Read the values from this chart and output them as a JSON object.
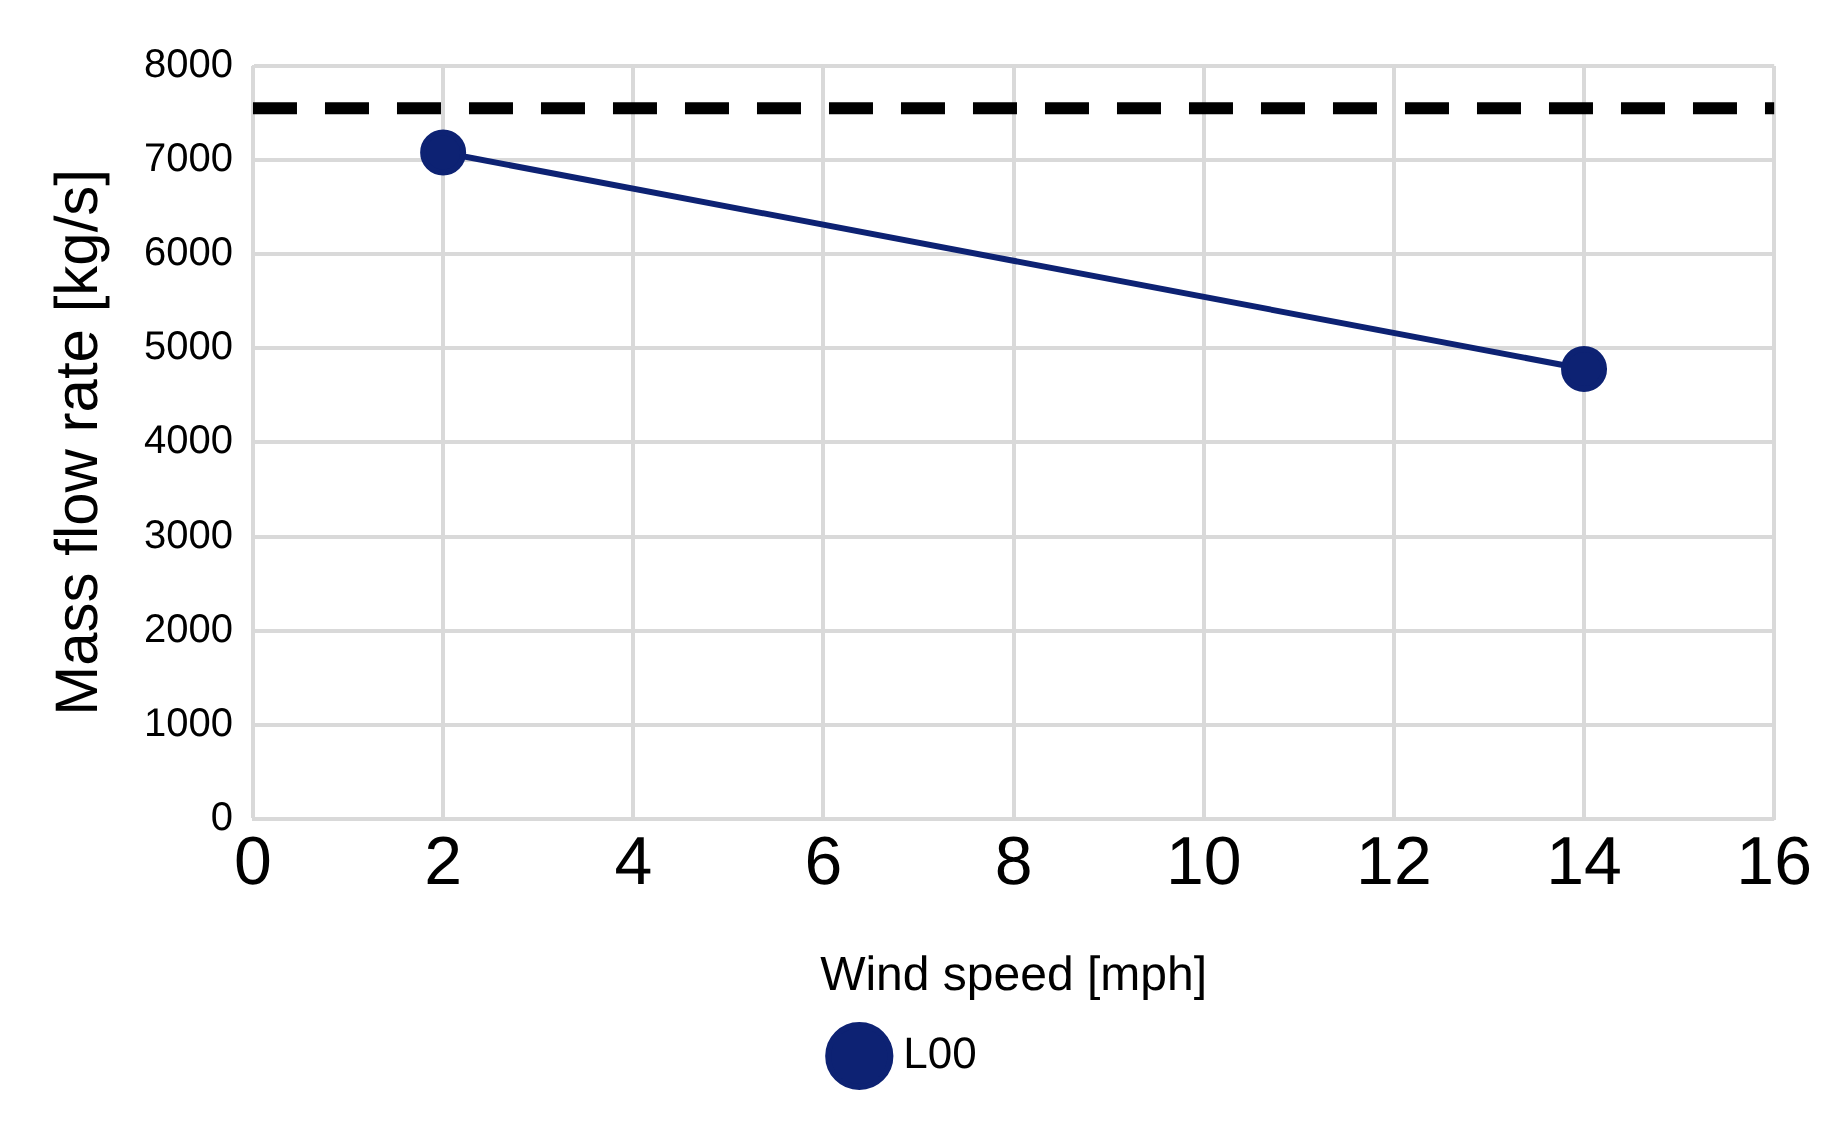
{
  "chart_data": {
    "type": "line",
    "xlabel": "Wind speed [mph]",
    "ylabel": "Mass flow rate [kg/s]",
    "x": [
      2,
      14
    ],
    "series": [
      {
        "name": "L00",
        "color": "#0d2273",
        "values": [
          7080,
          4780
        ]
      }
    ],
    "xlim": [
      0,
      16
    ],
    "xticks": [
      0,
      2,
      4,
      6,
      8,
      10,
      12,
      14,
      16
    ],
    "ylim": [
      0,
      8000
    ],
    "yticks": [
      0,
      1000,
      2000,
      3000,
      4000,
      5000,
      6000,
      7000,
      8000
    ],
    "ref_lines": [
      {
        "axis": "y",
        "value": 7550,
        "color": "#000000",
        "line_style": "dashed"
      }
    ],
    "grid": true,
    "legend": "bottom",
    "marker": "circle",
    "line_style": "solid"
  }
}
